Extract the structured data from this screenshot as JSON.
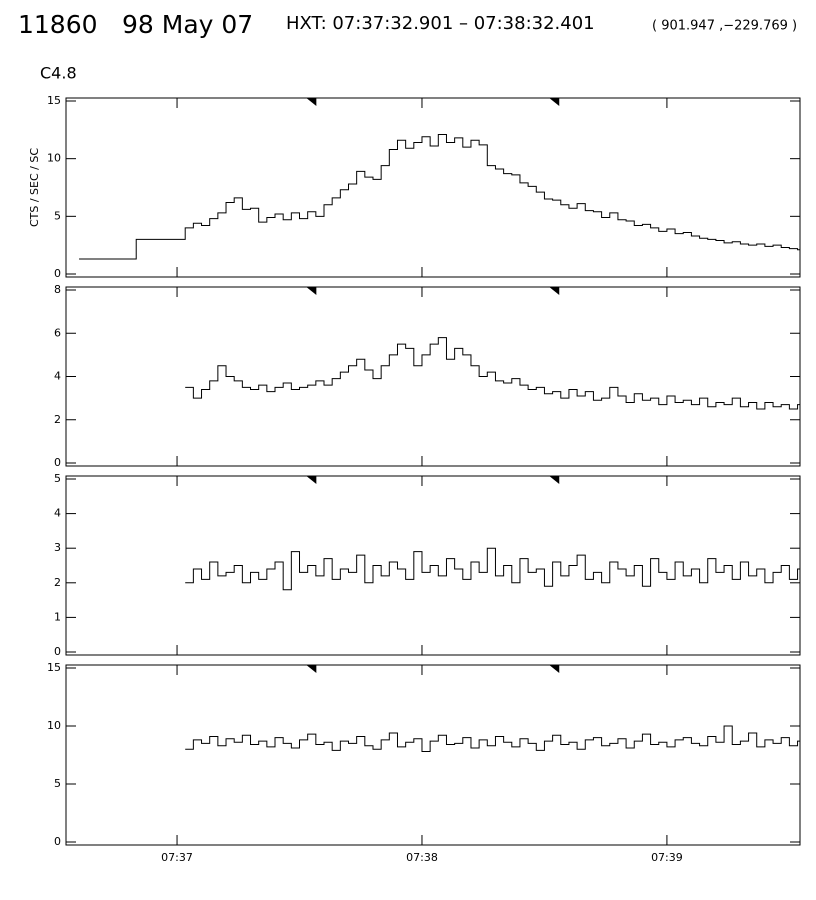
{
  "header": {
    "id": "11860",
    "date": "98 May 07",
    "interval": "HXT: 07:37:32.901 – 07:38:32.401",
    "position": "( 901.947 ,−229.769 )",
    "flare_class": "C4.8",
    "interval_markers": [
      32.9,
      92.4
    ]
  },
  "chart_data": [
    {
      "type": "line",
      "ylabel": "CTS / SEC / SC",
      "xlim": [
        -27.2,
        152.6
      ],
      "ylim": [
        0,
        15
      ],
      "yticks": [
        0,
        5,
        10,
        15
      ],
      "xticks": [
        {
          "value": 0,
          "label": "07:37"
        },
        {
          "value": 60,
          "label": "07:38"
        },
        {
          "value": 120,
          "label": "07:39"
        }
      ],
      "x": [
        -24,
        -10,
        2,
        4,
        6,
        8,
        10,
        12,
        14,
        16,
        18,
        20,
        22,
        24,
        26,
        28,
        30,
        32,
        34,
        36,
        38,
        40,
        42,
        44,
        46,
        48,
        50,
        52,
        54,
        56,
        58,
        60,
        62,
        64,
        66,
        68,
        70,
        72,
        74,
        76,
        78,
        80,
        82,
        84,
        86,
        88,
        90,
        92,
        94,
        96,
        98,
        100,
        102,
        104,
        106,
        108,
        110,
        112,
        114,
        116,
        118,
        120,
        122,
        124,
        126,
        128,
        130,
        132,
        134,
        136,
        138,
        140,
        142,
        144,
        146,
        148,
        150,
        152
      ],
      "series": [
        {
          "color": "#000000",
          "values": [
            1.3,
            3.0,
            4.0,
            4.4,
            4.2,
            4.8,
            5.3,
            6.2,
            6.6,
            5.6,
            5.7,
            4.5,
            4.9,
            5.2,
            4.7,
            5.3,
            4.8,
            5.4,
            5.0,
            6.0,
            6.6,
            7.3,
            7.8,
            8.9,
            8.4,
            8.2,
            9.4,
            10.8,
            11.6,
            10.9,
            11.4,
            11.9,
            11.1,
            12.1,
            11.4,
            11.8,
            11.0,
            11.6,
            11.2,
            9.4,
            9.1,
            8.7,
            8.6,
            7.9,
            7.6,
            7.1,
            6.5,
            6.4,
            6.0,
            5.7,
            6.1,
            5.5,
            5.4,
            4.9,
            5.3,
            4.7,
            4.6,
            4.2,
            4.3,
            4.0,
            3.7,
            3.9,
            3.5,
            3.6,
            3.3,
            3.1,
            3.0,
            2.9,
            2.7,
            2.8,
            2.6,
            2.5,
            2.6,
            2.4,
            2.5,
            2.3,
            2.2,
            2.1
          ]
        }
      ]
    },
    {
      "type": "line",
      "xlim": [
        -27.2,
        152.6
      ],
      "ylim": [
        0,
        8
      ],
      "yticks": [
        0,
        2,
        4,
        6,
        8
      ],
      "xticks": [
        {
          "value": 0,
          "label": "07:37"
        },
        {
          "value": 60,
          "label": "07:38"
        },
        {
          "value": 120,
          "label": "07:39"
        }
      ],
      "x": [
        2,
        4,
        6,
        8,
        10,
        12,
        14,
        16,
        18,
        20,
        22,
        24,
        26,
        28,
        30,
        32,
        34,
        36,
        38,
        40,
        42,
        44,
        46,
        48,
        50,
        52,
        54,
        56,
        58,
        60,
        62,
        64,
        66,
        68,
        70,
        72,
        74,
        76,
        78,
        80,
        82,
        84,
        86,
        88,
        90,
        92,
        94,
        96,
        98,
        100,
        102,
        104,
        106,
        108,
        110,
        112,
        114,
        116,
        118,
        120,
        122,
        124,
        126,
        128,
        130,
        132,
        134,
        136,
        138,
        140,
        142,
        144,
        146,
        148,
        150,
        152
      ],
      "series": [
        {
          "color": "#000000",
          "values": [
            3.5,
            3.0,
            3.4,
            3.8,
            4.5,
            4.0,
            3.8,
            3.5,
            3.4,
            3.6,
            3.3,
            3.5,
            3.7,
            3.4,
            3.5,
            3.6,
            3.8,
            3.6,
            3.9,
            4.2,
            4.5,
            4.8,
            4.3,
            3.9,
            4.5,
            5.0,
            5.5,
            5.3,
            4.5,
            5.0,
            5.5,
            5.8,
            4.8,
            5.3,
            5.0,
            4.5,
            4.0,
            4.2,
            3.8,
            3.7,
            3.9,
            3.6,
            3.4,
            3.5,
            3.2,
            3.3,
            3.0,
            3.4,
            3.1,
            3.3,
            2.9,
            3.0,
            3.5,
            3.1,
            2.8,
            3.2,
            2.9,
            3.0,
            2.7,
            3.1,
            2.8,
            2.9,
            2.7,
            3.0,
            2.6,
            2.8,
            2.7,
            3.0,
            2.6,
            2.8,
            2.5,
            2.8,
            2.6,
            2.7,
            2.5,
            2.7
          ]
        }
      ]
    },
    {
      "type": "line",
      "xlim": [
        -27.2,
        152.6
      ],
      "ylim": [
        0,
        5
      ],
      "yticks": [
        0,
        1,
        2,
        3,
        4,
        5
      ],
      "xticks": [
        {
          "value": 0,
          "label": "07:37"
        },
        {
          "value": 60,
          "label": "07:38"
        },
        {
          "value": 120,
          "label": "07:39"
        }
      ],
      "x": [
        2,
        4,
        6,
        8,
        10,
        12,
        14,
        16,
        18,
        20,
        22,
        24,
        26,
        28,
        30,
        32,
        34,
        36,
        38,
        40,
        42,
        44,
        46,
        48,
        50,
        52,
        54,
        56,
        58,
        60,
        62,
        64,
        66,
        68,
        70,
        72,
        74,
        76,
        78,
        80,
        82,
        84,
        86,
        88,
        90,
        92,
        94,
        96,
        98,
        100,
        102,
        104,
        106,
        108,
        110,
        112,
        114,
        116,
        118,
        120,
        122,
        124,
        126,
        128,
        130,
        132,
        134,
        136,
        138,
        140,
        142,
        144,
        146,
        148,
        150,
        152
      ],
      "series": [
        {
          "color": "#000000",
          "values": [
            2.0,
            2.4,
            2.1,
            2.6,
            2.2,
            2.3,
            2.5,
            2.0,
            2.3,
            2.1,
            2.4,
            2.6,
            1.8,
            2.9,
            2.3,
            2.5,
            2.2,
            2.7,
            2.1,
            2.4,
            2.3,
            2.8,
            2.0,
            2.5,
            2.2,
            2.6,
            2.4,
            2.1,
            2.9,
            2.3,
            2.5,
            2.2,
            2.7,
            2.4,
            2.1,
            2.6,
            2.3,
            3.0,
            2.2,
            2.5,
            2.0,
            2.7,
            2.3,
            2.4,
            1.9,
            2.6,
            2.2,
            2.5,
            2.8,
            2.1,
            2.3,
            2.0,
            2.6,
            2.4,
            2.2,
            2.5,
            1.9,
            2.7,
            2.3,
            2.1,
            2.6,
            2.2,
            2.4,
            2.0,
            2.7,
            2.3,
            2.5,
            2.1,
            2.6,
            2.2,
            2.4,
            2.0,
            2.3,
            2.5,
            2.1,
            2.4
          ]
        }
      ]
    },
    {
      "type": "line",
      "xlim": [
        -27.2,
        152.6
      ],
      "ylim": [
        0,
        15
      ],
      "yticks": [
        0,
        5,
        10,
        15
      ],
      "xticks": [
        {
          "value": 0,
          "label": "07:37"
        },
        {
          "value": 60,
          "label": "07:38"
        },
        {
          "value": 120,
          "label": "07:39"
        }
      ],
      "x": [
        2,
        4,
        6,
        8,
        10,
        12,
        14,
        16,
        18,
        20,
        22,
        24,
        26,
        28,
        30,
        32,
        34,
        36,
        38,
        40,
        42,
        44,
        46,
        48,
        50,
        52,
        54,
        56,
        58,
        60,
        62,
        64,
        66,
        68,
        70,
        72,
        74,
        76,
        78,
        80,
        82,
        84,
        86,
        88,
        90,
        92,
        94,
        96,
        98,
        100,
        102,
        104,
        106,
        108,
        110,
        112,
        114,
        116,
        118,
        120,
        122,
        124,
        126,
        128,
        130,
        132,
        134,
        136,
        138,
        140,
        142,
        144,
        146,
        148,
        150,
        152
      ],
      "series": [
        {
          "color": "#000000",
          "values": [
            8.0,
            8.8,
            8.5,
            9.1,
            8.3,
            8.9,
            8.6,
            9.2,
            8.4,
            8.7,
            8.2,
            9.0,
            8.5,
            8.1,
            8.8,
            9.3,
            8.4,
            8.6,
            7.9,
            8.7,
            8.5,
            9.1,
            8.3,
            8.0,
            8.8,
            9.4,
            8.2,
            8.6,
            8.9,
            7.8,
            8.7,
            9.2,
            8.4,
            8.5,
            9.0,
            8.1,
            8.8,
            8.3,
            9.1,
            8.6,
            8.2,
            8.9,
            8.5,
            7.9,
            8.7,
            9.2,
            8.4,
            8.6,
            8.0,
            8.8,
            9.0,
            8.3,
            8.5,
            8.9,
            8.1,
            8.7,
            9.3,
            8.4,
            8.6,
            8.2,
            8.8,
            9.0,
            8.5,
            8.3,
            9.1,
            8.6,
            10.0,
            8.4,
            8.7,
            9.4,
            8.2,
            8.8,
            8.5,
            9.0,
            8.3,
            8.7
          ]
        }
      ]
    }
  ]
}
